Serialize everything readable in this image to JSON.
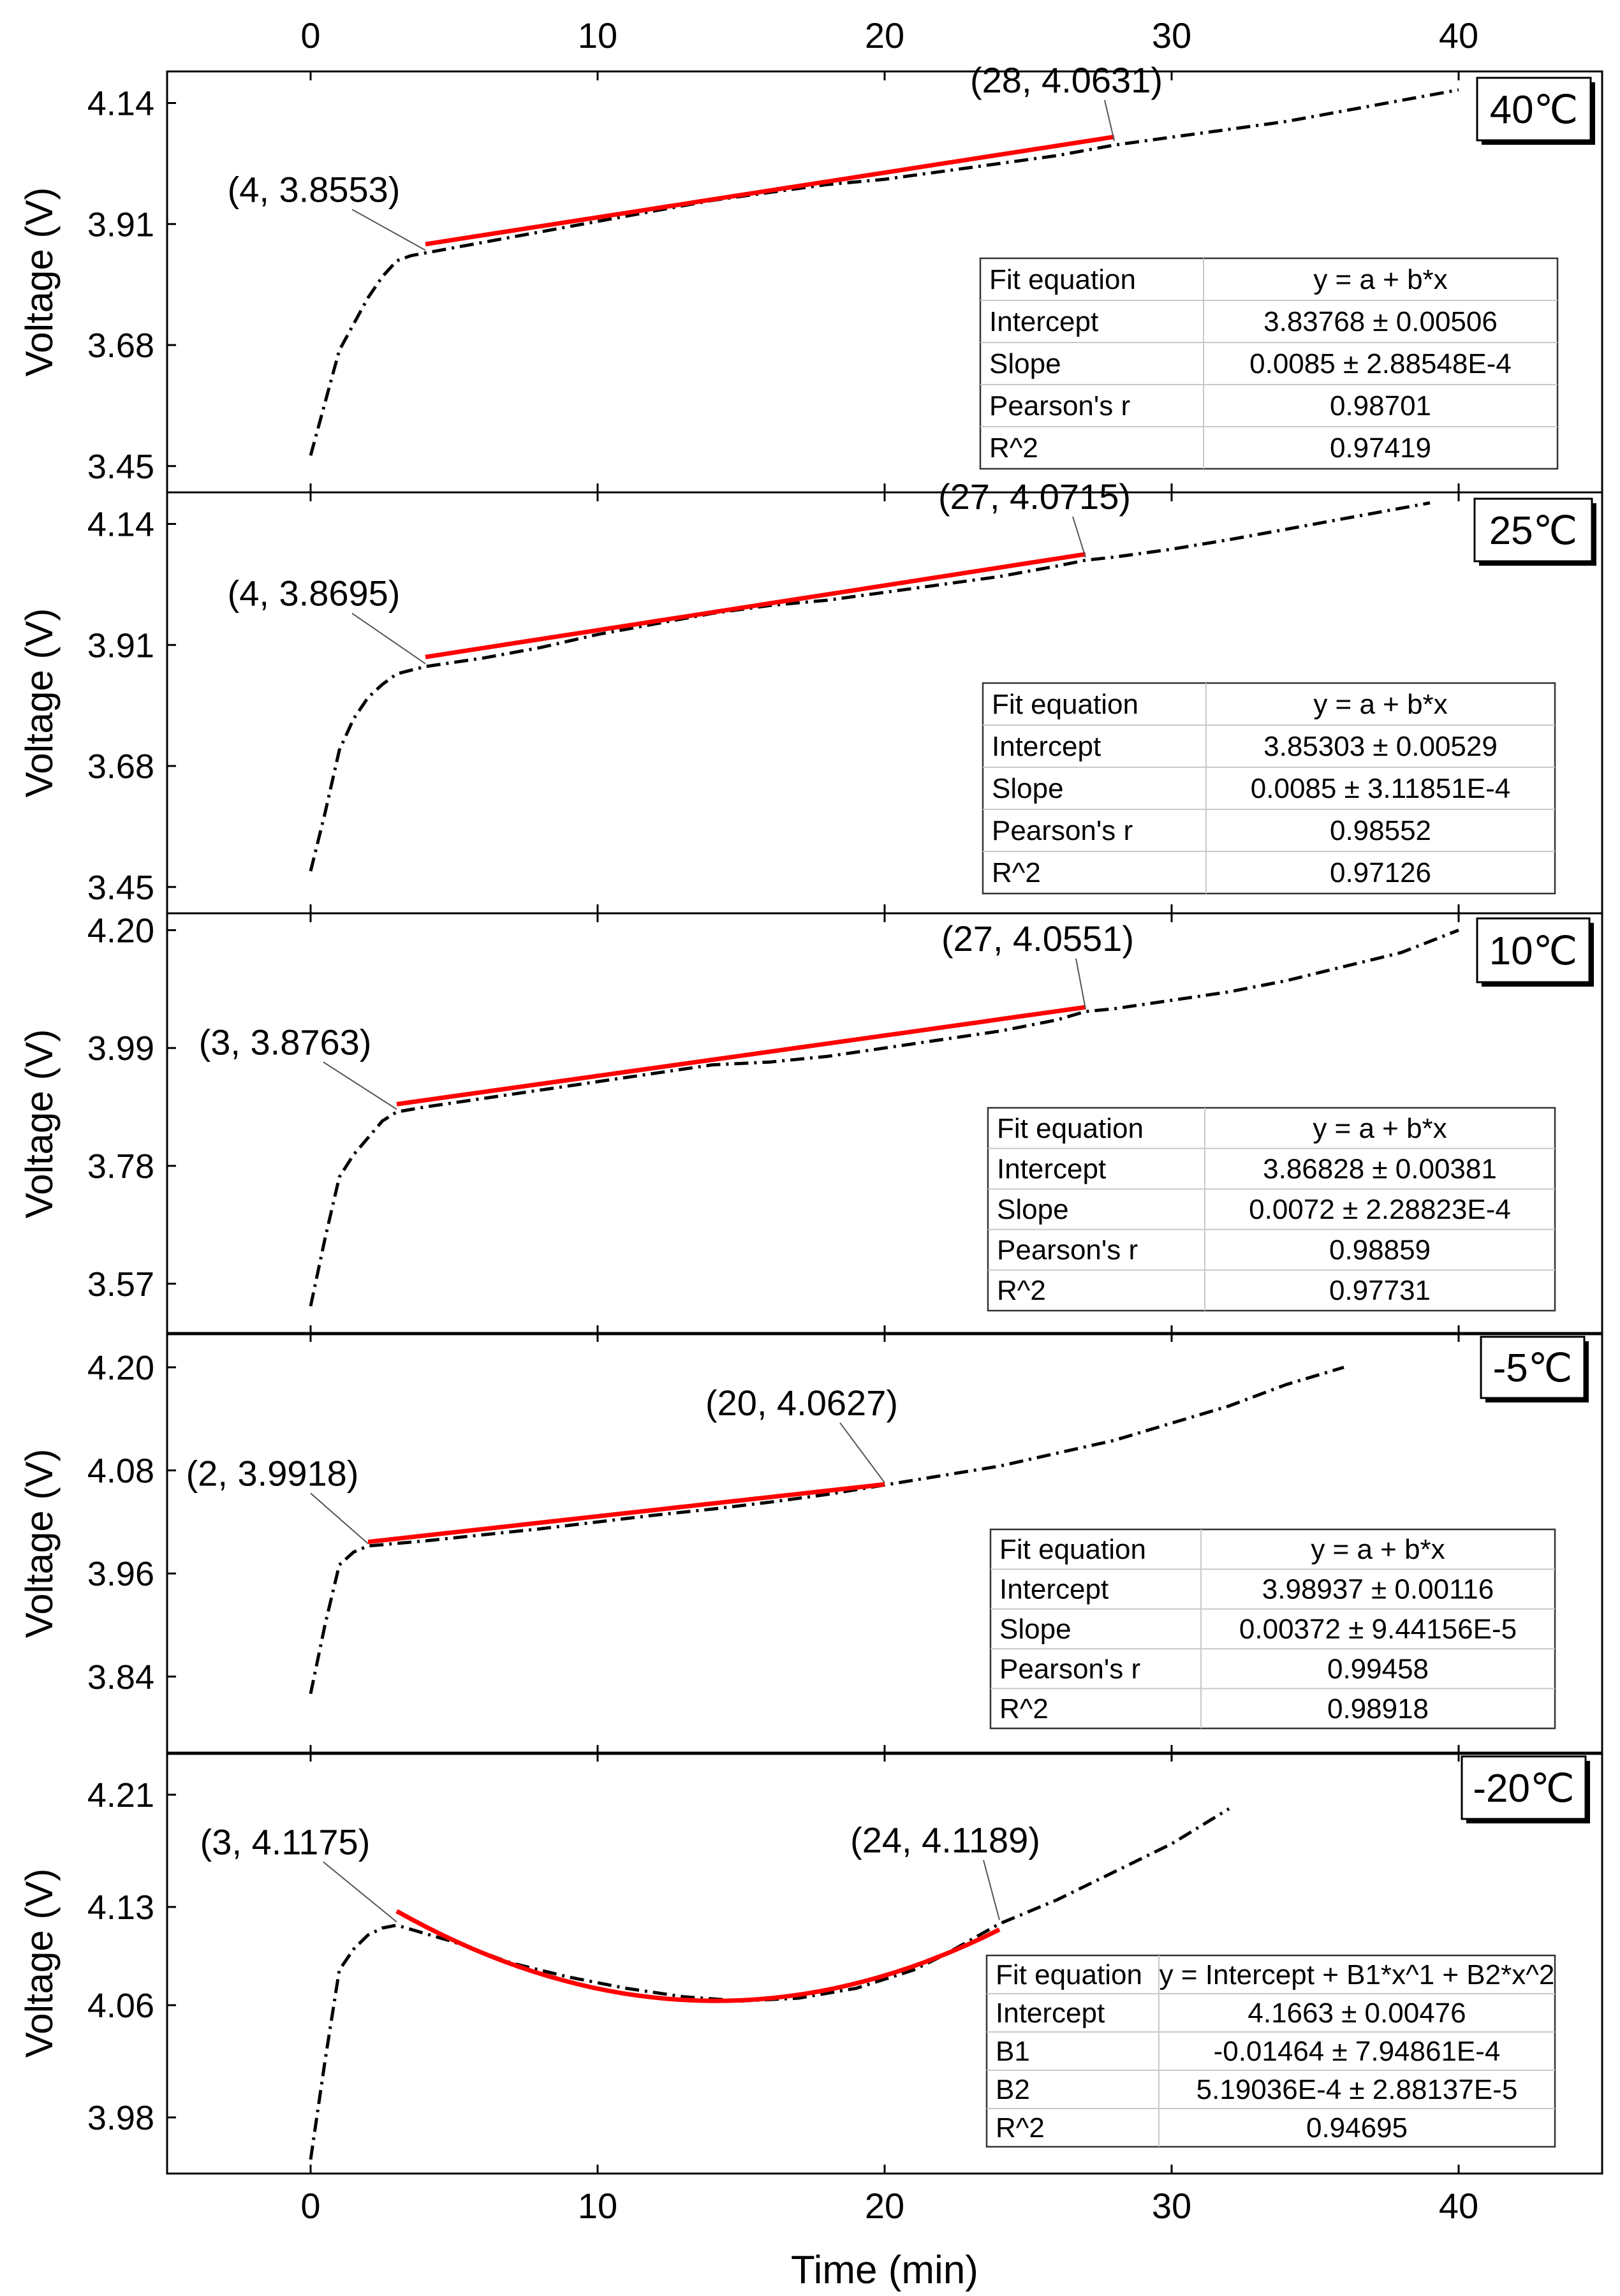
{
  "figure": {
    "top_ticks": [
      "0",
      "10",
      "20",
      "30",
      "40"
    ],
    "bottom_ticks": [
      "0",
      "10",
      "20",
      "30",
      "40"
    ],
    "xlabel": "Time (min)"
  },
  "chart_data": [
    {
      "type": "line",
      "temperature_label": "40℃",
      "ylabel": "Voltage (V)",
      "xlim": [
        -5,
        45
      ],
      "ylim": [
        3.4,
        4.2
      ],
      "yticks": [
        "3.45",
        "3.68",
        "3.91",
        "4.14"
      ],
      "grid": false,
      "measured": {
        "x": [
          0,
          0.5,
          1,
          1.5,
          2,
          2.5,
          3,
          3.5,
          4,
          6,
          8,
          10,
          12,
          14,
          16,
          18,
          20,
          22,
          24,
          26,
          28,
          30,
          32,
          34,
          36,
          38,
          40
        ],
        "y": [
          3.47,
          3.57,
          3.67,
          3.72,
          3.77,
          3.81,
          3.84,
          3.85,
          3.855,
          3.875,
          3.895,
          3.915,
          3.935,
          3.955,
          3.97,
          3.985,
          3.995,
          4.01,
          4.025,
          4.04,
          4.06,
          4.075,
          4.09,
          4.105,
          4.125,
          4.145,
          4.165
        ]
      },
      "fit": {
        "model": "linear",
        "x": [
          4,
          28
        ]
      },
      "annotations": [
        {
          "text": "(4, 3.8553)",
          "x": 4,
          "y": 3.8553
        },
        {
          "text": "(28, 4.0631)",
          "x": 28,
          "y": 4.0631
        }
      ],
      "fit_table": {
        "header": [
          "Fit equation",
          "y = a + b*x"
        ],
        "rows": [
          [
            "Intercept",
            "3.83768 ± 0.00506"
          ],
          [
            "Slope",
            "0.0085 ± 2.88548E-4"
          ],
          [
            "Pearson's r",
            "0.98701"
          ],
          [
            "R^2",
            "0.97419"
          ]
        ]
      }
    },
    {
      "type": "line",
      "temperature_label": "25℃",
      "ylabel": "Voltage (V)",
      "xlim": [
        -5,
        45
      ],
      "ylim": [
        3.4,
        4.2
      ],
      "yticks": [
        "3.45",
        "3.68",
        "3.91",
        "4.14"
      ],
      "grid": false,
      "measured": {
        "x": [
          0,
          0.5,
          1,
          1.5,
          2,
          2.5,
          3,
          3.5,
          4,
          6,
          8,
          10,
          12,
          14,
          16,
          18,
          20,
          22,
          24,
          26,
          27,
          28,
          30,
          32,
          34,
          36,
          39
        ],
        "y": [
          3.48,
          3.59,
          3.71,
          3.77,
          3.81,
          3.835,
          3.855,
          3.862,
          3.869,
          3.885,
          3.905,
          3.93,
          3.95,
          3.97,
          3.985,
          3.995,
          4.01,
          4.025,
          4.04,
          4.06,
          4.071,
          4.077,
          4.092,
          4.11,
          4.13,
          4.15,
          4.18
        ]
      },
      "fit": {
        "model": "linear",
        "x": [
          4,
          27
        ]
      },
      "annotations": [
        {
          "text": "(4, 3.8695)",
          "x": 4,
          "y": 3.8695
        },
        {
          "text": "(27, 4.0715)",
          "x": 27,
          "y": 4.0715
        }
      ],
      "fit_table": {
        "header": [
          "Fit equation",
          "y = a + b*x"
        ],
        "rows": [
          [
            "Intercept",
            "3.85303 ± 0.00529"
          ],
          [
            "Slope",
            "0.0085 ± 3.11851E-4"
          ],
          [
            "Pearson's r",
            "0.98552"
          ],
          [
            "R^2",
            "0.97126"
          ]
        ]
      }
    },
    {
      "type": "line",
      "temperature_label": "10℃",
      "ylabel": "Voltage (V)",
      "xlim": [
        -5,
        45
      ],
      "ylim": [
        3.48,
        4.23
      ],
      "yticks": [
        "3.57",
        "3.78",
        "3.99",
        "4.20"
      ],
      "grid": false,
      "measured": {
        "x": [
          0,
          0.5,
          1,
          1.5,
          2,
          2.5,
          3,
          4,
          6,
          8,
          10,
          12,
          14,
          16,
          18,
          20,
          22,
          24,
          26,
          27,
          28,
          30,
          32,
          34,
          36,
          38,
          40
        ],
        "y": [
          3.53,
          3.65,
          3.76,
          3.8,
          3.83,
          3.86,
          3.876,
          3.885,
          3.9,
          3.915,
          3.93,
          3.945,
          3.96,
          3.965,
          3.975,
          3.99,
          4.005,
          4.02,
          4.04,
          4.055,
          4.06,
          4.075,
          4.09,
          4.11,
          4.135,
          4.16,
          4.2
        ]
      },
      "fit": {
        "model": "linear",
        "x": [
          3,
          27
        ]
      },
      "annotations": [
        {
          "text": "(3, 3.8763)",
          "x": 3,
          "y": 3.8763
        },
        {
          "text": "(27, 4.0551)",
          "x": 27,
          "y": 4.0551
        }
      ],
      "fit_table": {
        "header": [
          "Fit equation",
          "y = a + b*x"
        ],
        "rows": [
          [
            "Intercept",
            "3.86828 ± 0.00381"
          ],
          [
            "Slope",
            "0.0072 ± 2.28823E-4"
          ],
          [
            "Pearson's r",
            "0.98859"
          ],
          [
            "R^2",
            "0.97731"
          ]
        ]
      }
    },
    {
      "type": "line",
      "temperature_label": "-5℃",
      "ylabel": "Voltage (V)",
      "xlim": [
        -5,
        45
      ],
      "ylim": [
        3.75,
        4.24
      ],
      "yticks": [
        "3.84",
        "3.96",
        "4.08",
        "4.20"
      ],
      "grid": false,
      "measured": {
        "x": [
          0,
          0.5,
          1,
          1.5,
          2,
          4,
          6,
          8,
          10,
          12,
          14,
          16,
          18,
          20,
          22,
          24,
          26,
          28,
          30,
          32,
          34,
          36
        ],
        "y": [
          3.82,
          3.9,
          3.97,
          3.985,
          3.992,
          3.998,
          4.005,
          4.012,
          4.02,
          4.028,
          4.035,
          4.043,
          4.052,
          4.063,
          4.074,
          4.085,
          4.1,
          4.115,
          4.135,
          4.155,
          4.18,
          4.2
        ]
      },
      "fit": {
        "model": "linear",
        "x": [
          2,
          20
        ]
      },
      "annotations": [
        {
          "text": "(2, 3.9918)",
          "x": 2,
          "y": 3.9918
        },
        {
          "text": "(20, 4.0627)",
          "x": 20,
          "y": 4.0627
        }
      ],
      "fit_table": {
        "header": [
          "Fit equation",
          "y = a + b*x"
        ],
        "rows": [
          [
            "Intercept",
            "3.98937 ± 0.00116"
          ],
          [
            "Slope",
            "0.00372 ± 9.44156E-5"
          ],
          [
            "Pearson's r",
            "0.99458"
          ],
          [
            "R^2",
            "0.98918"
          ]
        ]
      }
    },
    {
      "type": "line",
      "temperature_label": "-20℃",
      "ylabel": "Voltage (V)",
      "xlim": [
        -5,
        45
      ],
      "ylim": [
        3.94,
        4.24
      ],
      "yticks": [
        "3.98",
        "4.06",
        "4.13",
        "4.21"
      ],
      "grid": false,
      "measured": {
        "x": [
          0,
          0.5,
          1,
          1.5,
          2,
          2.5,
          3,
          5,
          7,
          9,
          11,
          13,
          15,
          17,
          19,
          21,
          22,
          24,
          26,
          28,
          30,
          32
        ],
        "y": [
          3.95,
          4.02,
          4.085,
          4.1,
          4.11,
          4.115,
          4.117,
          4.105,
          4.09,
          4.08,
          4.072,
          4.066,
          4.063,
          4.065,
          4.072,
          4.085,
          4.095,
          4.118,
          4.135,
          4.155,
          4.175,
          4.2
        ]
      },
      "fit": {
        "model": "quadratic",
        "x": [
          3,
          24
        ]
      },
      "annotations": [
        {
          "text": "(3, 4.1175)",
          "x": 3,
          "y": 4.1175
        },
        {
          "text": "(24, 4.1189)",
          "x": 24,
          "y": 4.1189
        }
      ],
      "fit_table": {
        "header": [
          "Fit equation",
          "y = Intercept + B1*x^1 + B2*x^2"
        ],
        "rows": [
          [
            "Intercept",
            "4.1663 ± 0.00476"
          ],
          [
            "B1",
            "-0.01464 ± 7.94861E-4"
          ],
          [
            "B2",
            "5.19036E-4 ± 2.88137E-5"
          ],
          [
            "R^2",
            "0.94695"
          ]
        ]
      }
    }
  ]
}
